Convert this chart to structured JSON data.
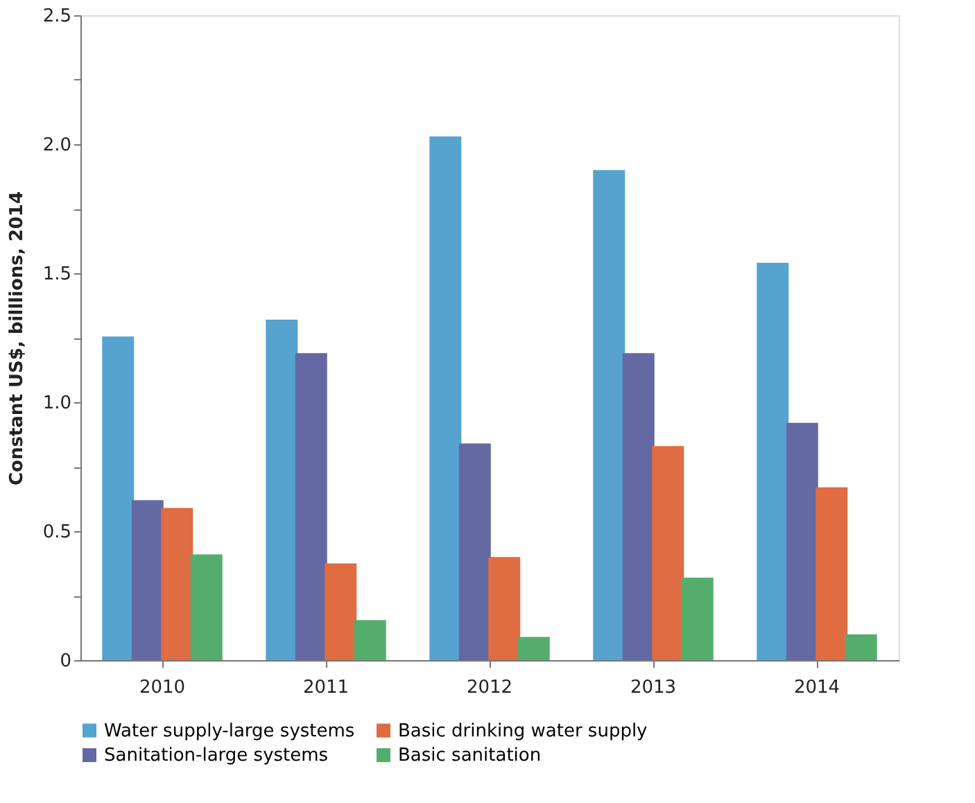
{
  "chart_data": {
    "type": "bar",
    "ylabel": "Constant US$, billlions, 2014",
    "categories": [
      "2010",
      "2011",
      "2012",
      "2013",
      "2014"
    ],
    "series": [
      {
        "name": "Water supply-large systems",
        "color": "#56a3cf",
        "values": [
          1.255,
          1.32,
          2.03,
          1.9,
          1.54
        ]
      },
      {
        "name": "Sanitation-large systems",
        "color": "#6569a3",
        "values": [
          0.62,
          1.19,
          0.84,
          1.19,
          0.92
        ]
      },
      {
        "name": "Basic drinking water supply",
        "color": "#e06c42",
        "values": [
          0.59,
          0.375,
          0.4,
          0.83,
          0.67
        ]
      },
      {
        "name": "Basic sanitation",
        "color": "#55ad6d",
        "values": [
          0.41,
          0.155,
          0.09,
          0.32,
          0.1
        ]
      }
    ],
    "ylim": [
      0,
      2.5
    ],
    "yticks": [
      0,
      {
        "value": 0.25,
        "label": null
      },
      {
        "value": 0.5,
        "label": "0.5"
      },
      {
        "value": 0.75,
        "label": null
      },
      {
        "value": 1,
        "label": "1.0"
      },
      {
        "value": 1.25,
        "label": null
      },
      {
        "value": 1.5,
        "label": "1.5"
      },
      {
        "value": 1.75,
        "label": null
      },
      {
        "value": 2,
        "label": "2.0"
      },
      {
        "value": 2.25,
        "label": null
      },
      {
        "value": 2.5,
        "label": "2.5"
      }
    ],
    "grid": false,
    "legend": "bottom"
  }
}
